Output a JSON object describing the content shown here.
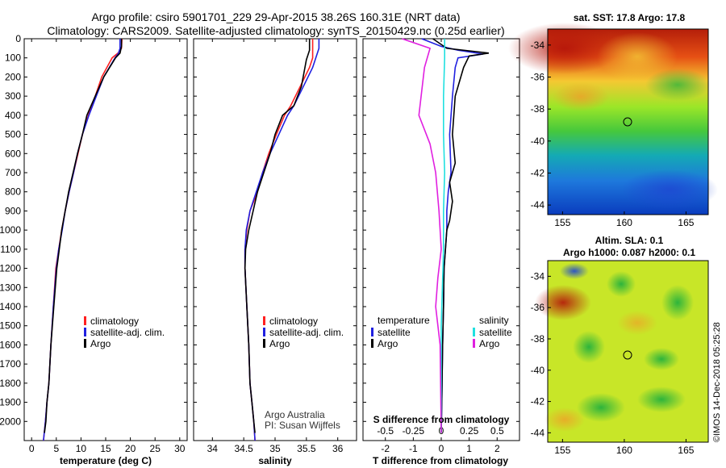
{
  "title_line1": "Argo profile: csiro 5901701_229 29-Apr-2015 38.26S 160.31E (NRT data)",
  "title_line2": "Climatology: CARS2009. Satellite-adjusted climatology: synTS_20150429.nc (0.25d earlier)",
  "colors": {
    "climatology": "#ff2020",
    "satellite": "#2020e0",
    "argo": "#000000",
    "sat_salinity": "#20e0e0",
    "argo_salinity": "#e020e0"
  },
  "credit_line1": "Argo Australia",
  "credit_line2": "PI: Susan Wijffels",
  "timestamp": "©IMOS 14-Dec-2018 05:25:28",
  "chart_data": [
    {
      "type": "line",
      "id": "temperature",
      "xlabel": "temperature (deg C)",
      "ylabel": "",
      "xlim": [
        -1.5,
        31.5
      ],
      "ylim": [
        2100,
        0
      ],
      "xticks": [
        0,
        5,
        10,
        15,
        20,
        25,
        30
      ],
      "yticks": [
        0,
        100,
        200,
        300,
        400,
        500,
        600,
        700,
        800,
        900,
        1000,
        1100,
        1200,
        1300,
        1400,
        1500,
        1600,
        1700,
        1800,
        1900,
        2000
      ],
      "legend": [
        "climatology",
        "satellite-adj. clim.",
        "Argo"
      ],
      "series": [
        {
          "name": "climatology",
          "color": "#ff2020",
          "x": [
            18.3,
            18.2,
            17.5,
            16.3,
            14.2,
            12.9,
            11.5,
            10.3,
            9.4,
            8.5,
            7.6,
            6.8,
            6.1,
            5.5,
            4.9,
            4.4,
            3.9,
            3.5,
            3.1,
            2.8,
            2.6,
            2.4
          ],
          "y": [
            0,
            50,
            75,
            100,
            200,
            300,
            400,
            500,
            600,
            700,
            800,
            900,
            1000,
            1100,
            1200,
            1400,
            1600,
            1800,
            1900,
            2000,
            2050,
            2100
          ]
        },
        {
          "name": "satellite-adj. clim.",
          "color": "#2020e0",
          "x": [
            17.9,
            17.9,
            17.6,
            16.9,
            14.6,
            13.1,
            11.6,
            10.3,
            9.3,
            8.5,
            7.6,
            6.8,
            6.2,
            5.5,
            5.0,
            4.4,
            3.9,
            3.5,
            3.1,
            2.8,
            2.6,
            2.4
          ],
          "y": [
            0,
            50,
            75,
            100,
            200,
            300,
            400,
            500,
            600,
            700,
            800,
            900,
            1000,
            1100,
            1200,
            1400,
            1600,
            1800,
            1900,
            2000,
            2050,
            2100
          ]
        },
        {
          "name": "Argo",
          "color": "#000000",
          "x": [
            18.2,
            18.2,
            17.9,
            17.0,
            14.6,
            12.9,
            11.2,
            10.3,
            9.3,
            8.4,
            7.5,
            6.8,
            6.1,
            5.6,
            5.1,
            4.5,
            3.9,
            3.5,
            3.1,
            2.9,
            2.6
          ],
          "y": [
            0,
            40,
            75,
            100,
            200,
            300,
            400,
            500,
            600,
            700,
            800,
            900,
            1000,
            1100,
            1200,
            1400,
            1600,
            1800,
            1900,
            2000,
            2060
          ]
        }
      ]
    },
    {
      "type": "line",
      "id": "salinity",
      "xlabel": "salinity",
      "xlim": [
        33.7,
        36.3
      ],
      "ylim": [
        2100,
        0
      ],
      "xticks": [
        34,
        34.5,
        35,
        35.5,
        36
      ],
      "legend": [
        "climatology",
        "satellite-adj. clim.",
        "Argo"
      ],
      "series": [
        {
          "name": "climatology",
          "color": "#ff2020",
          "x": [
            35.6,
            35.6,
            35.6,
            35.55,
            35.4,
            35.25,
            35.15,
            35.02,
            34.9,
            34.8,
            34.72,
            34.6,
            34.55,
            34.52,
            34.52,
            34.55,
            34.58,
            34.6,
            34.63,
            34.66,
            34.68
          ],
          "y": [
            0,
            50,
            100,
            150,
            250,
            350,
            400,
            500,
            600,
            700,
            800,
            900,
            1000,
            1100,
            1200,
            1400,
            1600,
            1800,
            1900,
            2000,
            2100
          ]
        },
        {
          "name": "satellite-adj. clim.",
          "color": "#2020e0",
          "x": [
            35.7,
            35.7,
            35.65,
            35.6,
            35.45,
            35.3,
            35.2,
            35.06,
            34.92,
            34.8,
            34.7,
            34.6,
            34.54,
            34.52,
            34.52,
            34.55,
            34.58,
            34.6,
            34.63,
            34.66,
            34.68
          ],
          "y": [
            0,
            50,
            100,
            150,
            250,
            350,
            400,
            500,
            600,
            700,
            800,
            900,
            1000,
            1100,
            1200,
            1400,
            1600,
            1800,
            1900,
            2000,
            2100
          ]
        },
        {
          "name": "Argo",
          "color": "#000000",
          "x": [
            35.55,
            35.55,
            35.5,
            35.42,
            35.3,
            35.12,
            35.0,
            34.92,
            34.82,
            34.72,
            34.65,
            34.58,
            34.53,
            34.52,
            34.55,
            34.58,
            34.6,
            34.63,
            34.66,
            34.68
          ],
          "y": [
            0,
            60,
            110,
            250,
            350,
            400,
            500,
            600,
            700,
            800,
            900,
            1000,
            1100,
            1200,
            1400,
            1600,
            1800,
            1900,
            2000,
            2060
          ]
        }
      ]
    },
    {
      "type": "line",
      "id": "difference",
      "xlabel": "T difference from climatology",
      "secondary_xlabel": "S difference from climatology",
      "xlim": [
        -2.8,
        2.8
      ],
      "ylim": [
        2100,
        0
      ],
      "xticks": [
        -2,
        -1,
        0,
        1,
        2
      ],
      "secondary_xticks": [
        -0.5,
        -0.25,
        0,
        0.25,
        0.5
      ],
      "legend_left_title": "temperature",
      "legend_right_title": "salinity",
      "legend_left": [
        "satellite",
        "Argo"
      ],
      "legend_right": [
        "satellite",
        "Argo"
      ],
      "series": [
        {
          "name": "T satellite",
          "color": "#2020e0",
          "x": [
            -0.7,
            0,
            0.6,
            1.5,
            0.6,
            0.5,
            0.4,
            0.3,
            0.35,
            0.25,
            0.2,
            0.2,
            0.15,
            0.1,
            0.08,
            0.05,
            0.03,
            0.02,
            0.0
          ],
          "y": [
            0,
            40,
            60,
            80,
            100,
            150,
            300,
            500,
            700,
            800,
            900,
            1000,
            1100,
            1200,
            1400,
            1600,
            1800,
            1900,
            2060
          ]
        },
        {
          "name": "T Argo",
          "color": "#000000",
          "x": [
            -0.3,
            0.2,
            1.7,
            1.0,
            0.8,
            0.5,
            0.4,
            0.5,
            0.3,
            0.4,
            0.3,
            0.2,
            0.15,
            0.1,
            0.08,
            0.05,
            0.03,
            0.0
          ],
          "y": [
            0,
            50,
            75,
            90,
            150,
            300,
            500,
            650,
            750,
            850,
            950,
            1000,
            1100,
            1200,
            1400,
            1600,
            1800,
            2060
          ]
        },
        {
          "name": "S satellite",
          "color": "#20e0e0",
          "x": [
            0.03,
            0.03,
            0.02,
            0.02,
            0.03,
            0.02,
            0.02,
            0.01,
            0.0,
            0.0
          ],
          "y": [
            0,
            100,
            300,
            500,
            700,
            900,
            1100,
            1300,
            1500,
            2060
          ]
        },
        {
          "name": "S Argo",
          "color": "#e020e0",
          "x": [
            -0.35,
            -0.1,
            -0.15,
            -0.2,
            -0.1,
            -0.05,
            -0.02,
            0.0,
            -0.03,
            -0.05,
            -0.01,
            0.0
          ],
          "y": [
            0,
            50,
            150,
            400,
            550,
            700,
            900,
            1100,
            1250,
            1400,
            1600,
            2060
          ]
        }
      ]
    },
    {
      "type": "heatmap",
      "id": "sst_map",
      "title": "sat. SST: 17.8  Argo: 17.8",
      "xticks": [
        155,
        160,
        165
      ],
      "yticks": [
        -34,
        -36,
        -38,
        -40,
        -42,
        -44
      ],
      "marker_lon": 160.31,
      "marker_lat": -38.26
    },
    {
      "type": "heatmap",
      "id": "sla_map",
      "title": "Altim. SLA: 0.1",
      "subtitle": "Argo h1000: 0.087  h2000: 0.1",
      "xticks": [
        155,
        160,
        165
      ],
      "yticks": [
        -34,
        -36,
        -38,
        -40,
        -42,
        -44
      ],
      "marker_lon": 160.31,
      "marker_lat": -38.26
    }
  ]
}
